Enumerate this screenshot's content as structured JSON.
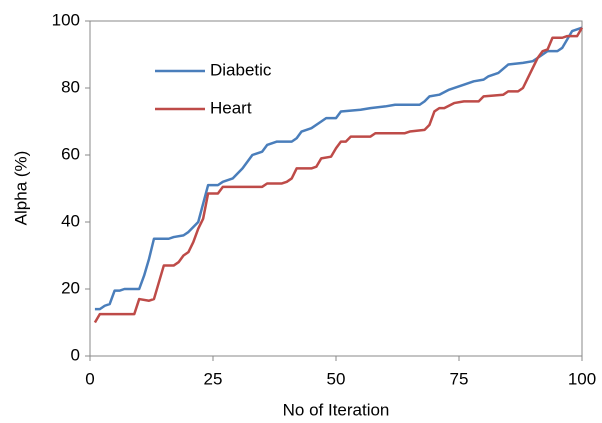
{
  "chart_data": {
    "type": "line",
    "x_label": "No of Iteration",
    "y_label": "Alpha (%)",
    "xlim": [
      0,
      100
    ],
    "xticks": [
      0,
      25,
      50,
      75,
      100
    ],
    "ylim": [
      0,
      100
    ],
    "yticks": [
      0,
      20,
      40,
      60,
      80,
      100
    ],
    "legend": "upper left",
    "grid": false,
    "series": [
      {
        "name": "Diabetic",
        "color": "#4a7ebb",
        "x": [
          1,
          2,
          3,
          4,
          5,
          6,
          7,
          9,
          10,
          11,
          12,
          13,
          14,
          16,
          17,
          19,
          20,
          22,
          24,
          26,
          27,
          29,
          31,
          33,
          35,
          36,
          38,
          41,
          42,
          43,
          45,
          47,
          48,
          50,
          51,
          55,
          57,
          60,
          62,
          67,
          68,
          69,
          71,
          73,
          76,
          78,
          80,
          81,
          83,
          85,
          88,
          90,
          91,
          93,
          95,
          96,
          98,
          100
        ],
        "values": [
          14,
          14,
          15,
          15.5,
          19.5,
          19.5,
          20,
          20,
          20,
          24,
          29,
          35,
          35,
          35,
          35.5,
          36,
          37,
          40,
          51,
          51,
          52,
          53,
          56,
          60,
          61,
          63,
          64,
          64,
          65,
          67,
          68,
          70,
          71,
          71,
          73,
          73.5,
          74,
          74.5,
          75,
          75,
          76,
          77.5,
          78,
          79.5,
          81,
          82,
          82.5,
          83.5,
          84.5,
          87,
          87.5,
          88,
          89,
          91,
          91,
          92,
          97,
          98
        ]
      },
      {
        "name": "Heart",
        "color": "#be4b48",
        "x": [
          1,
          2,
          3,
          9,
          10,
          12,
          13,
          14,
          15,
          17,
          18,
          19,
          20,
          21,
          22,
          23,
          24,
          26,
          27,
          32,
          35,
          36,
          39,
          40,
          41,
          42,
          45,
          46,
          47,
          49,
          50,
          51,
          52,
          53,
          57,
          58,
          64,
          65,
          68,
          69,
          70,
          71,
          72,
          74,
          76,
          79,
          80,
          84,
          85,
          87,
          88,
          89,
          91,
          92,
          93,
          94,
          96,
          97,
          99,
          100
        ],
        "values": [
          10,
          12.5,
          12.5,
          12.5,
          17,
          16.5,
          17,
          22,
          27,
          27,
          28,
          30,
          31,
          34,
          38,
          41,
          48.5,
          48.5,
          50.5,
          50.5,
          50.5,
          51.5,
          51.5,
          52,
          53,
          56,
          56,
          56.5,
          59,
          59.5,
          62,
          64,
          64,
          65.5,
          65.5,
          66.5,
          66.5,
          67,
          67.5,
          69,
          73,
          74,
          74,
          75.5,
          76,
          76,
          77.5,
          78,
          79,
          79,
          80,
          83,
          89,
          91,
          91.5,
          95,
          95,
          95.5,
          95.5,
          98
        ]
      }
    ]
  }
}
